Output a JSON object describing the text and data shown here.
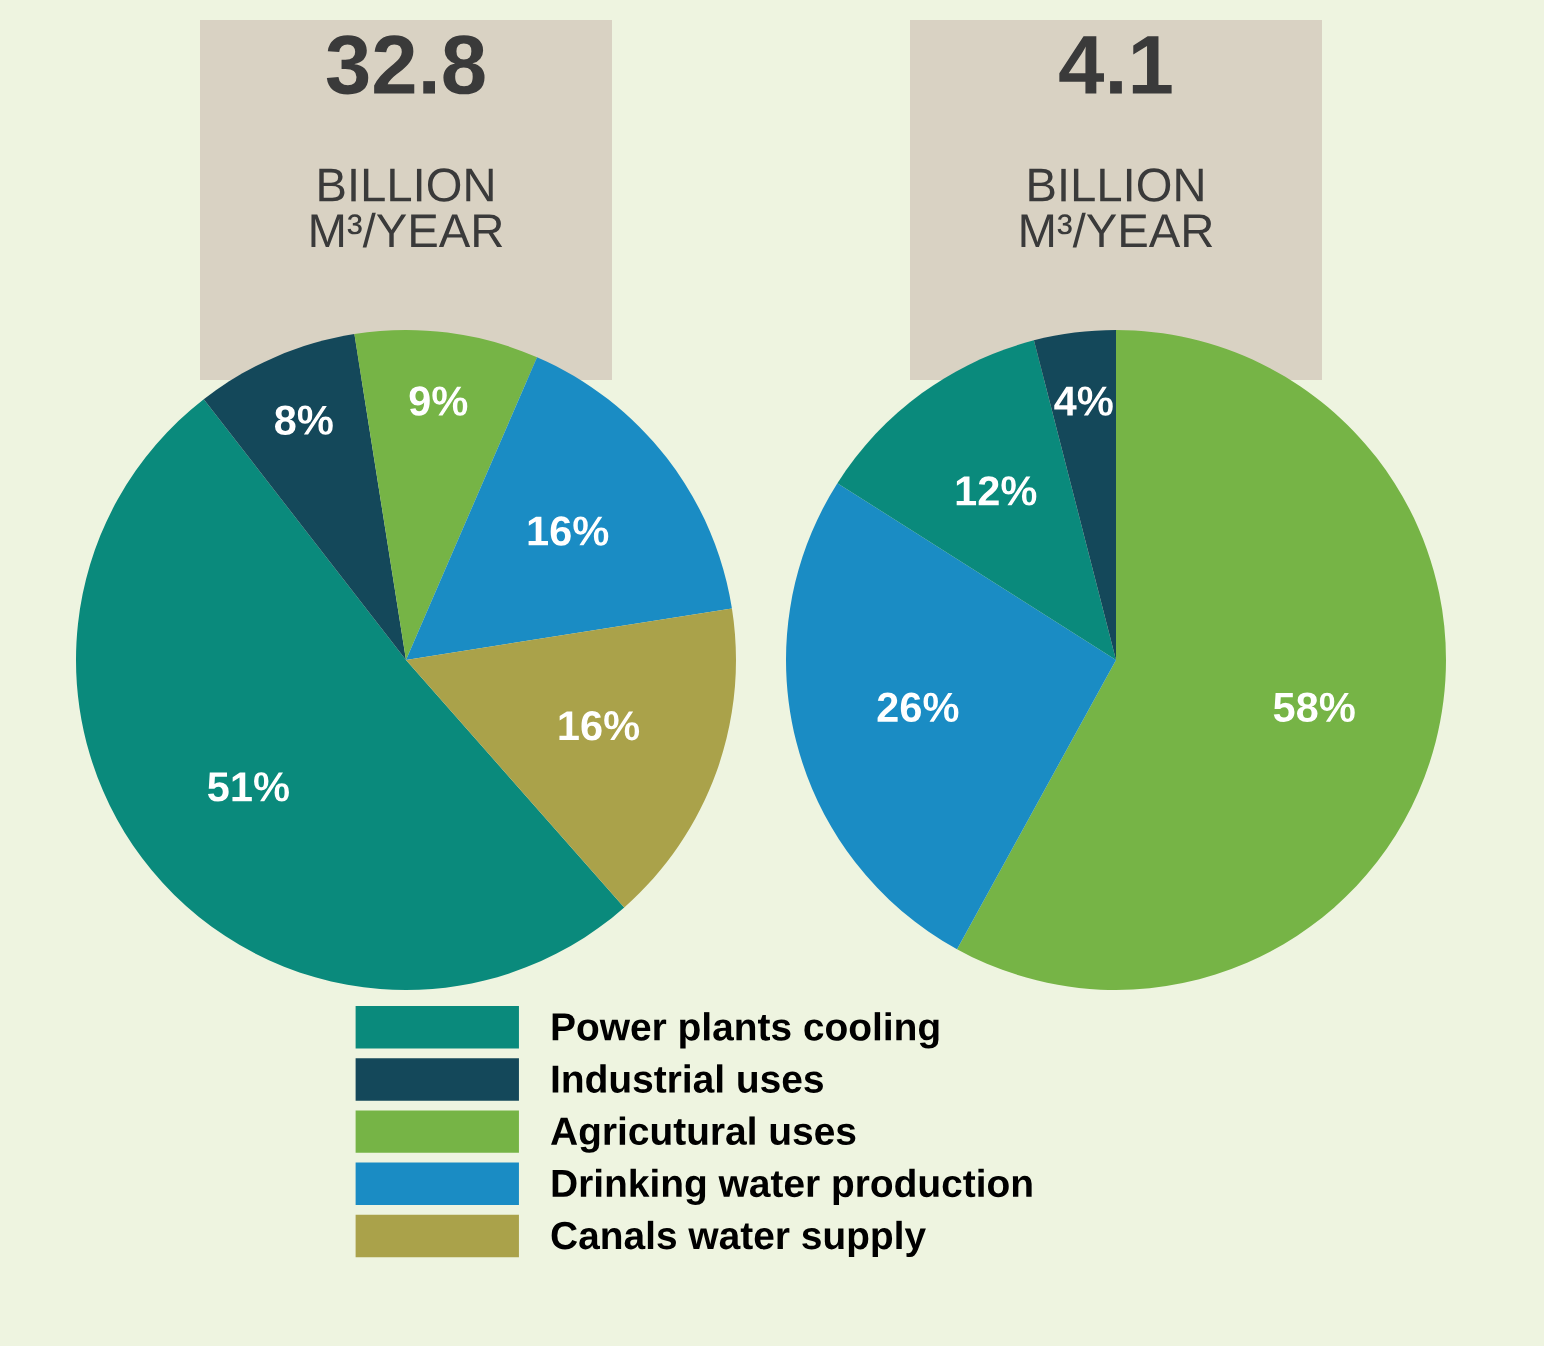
{
  "chart_data": [
    {
      "type": "pie",
      "title": "32.8",
      "subtitle": "BILLION\nM³/YEAR",
      "categories": [
        "Power plants cooling",
        "Industrial uses",
        "Agricutural uses",
        "Drinking water production",
        "Canals water supply"
      ],
      "values": [
        51,
        8,
        9,
        16,
        16
      ],
      "value_labels": [
        "51%",
        "8%",
        "9%",
        "16%",
        "16%"
      ],
      "colors": [
        "#0a8a7c",
        "#14485a",
        "#76b446",
        "#1a8cc4",
        "#aaa24a"
      ],
      "legend": "bottom"
    },
    {
      "type": "pie",
      "title": "4.1",
      "subtitle": "BILLION\nM³/YEAR",
      "categories": [
        null,
        null,
        null,
        null
      ],
      "values": [
        58,
        26,
        12,
        4
      ],
      "value_labels": [
        "58%",
        "26%",
        "12%",
        "4%"
      ],
      "colors": [
        "#76b446",
        "#1a8cc4",
        "#0a8a7c",
        "#14485a"
      ]
    }
  ]
}
